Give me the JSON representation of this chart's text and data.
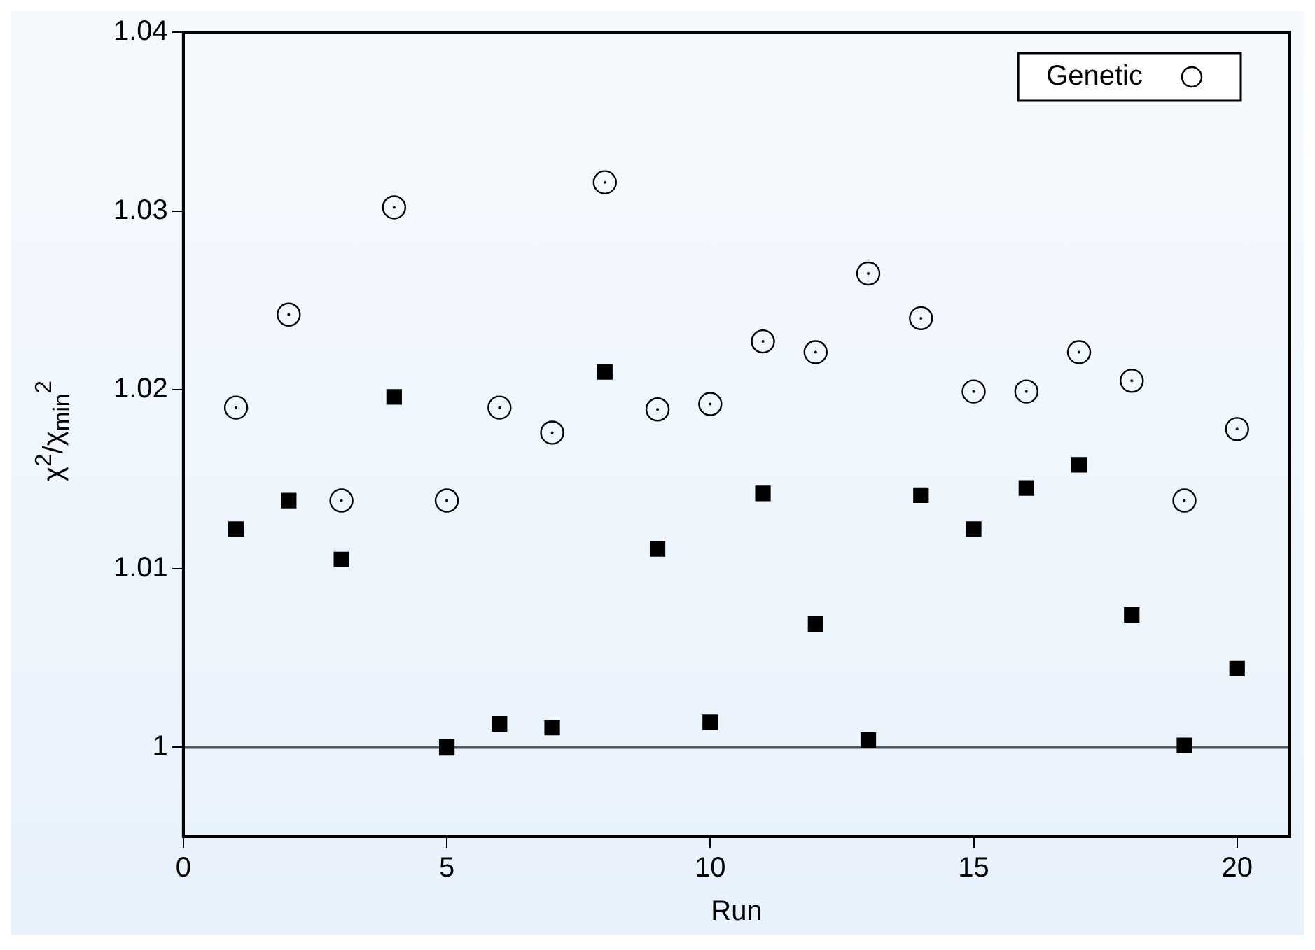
{
  "chart_data": {
    "type": "scatter",
    "xlabel": "Run",
    "ylabel": "χ$^{2}$/χ$_{min}$$^{2}$",
    "xlim": [
      0,
      21
    ],
    "xticks": [
      0,
      5,
      10,
      15,
      20
    ],
    "ylim": [
      0.995,
      1.04
    ],
    "yticks": [
      1,
      1.01,
      1.02,
      1.03,
      1.04
    ],
    "grid": false,
    "legend": "top right",
    "x": [
      1,
      2,
      3,
      4,
      5,
      6,
      7,
      8,
      9,
      10,
      11,
      12,
      13,
      14,
      15,
      16,
      17,
      18,
      19,
      20
    ],
    "series": [
      {
        "name": "Genetic",
        "color": "#000000",
        "marker": "circle",
        "values": [
          1.019,
          1.0242,
          1.0138,
          1.0302,
          1.0138,
          1.019,
          1.0176,
          1.0316,
          1.0189,
          1.0192,
          1.0227,
          1.0221,
          1.0265,
          1.024,
          1.0199,
          1.0199,
          1.0221,
          1.0205,
          1.0138,
          1.0178
        ]
      },
      {
        "color": "#000000",
        "marker": "square",
        "values": [
          1.0122,
          1.0138,
          1.0105,
          1.0196,
          1.0,
          1.0013,
          1.0011,
          1.021,
          1.0111,
          1.0014,
          1.0142,
          1.0069,
          1.0004,
          1.0141,
          1.0122,
          1.0145,
          1.0158,
          1.0074,
          1.0001,
          1.0044
        ]
      }
    ],
    "ref_lines": [
      {
        "axis": "y",
        "value": 1,
        "color": "#555555"
      }
    ]
  }
}
